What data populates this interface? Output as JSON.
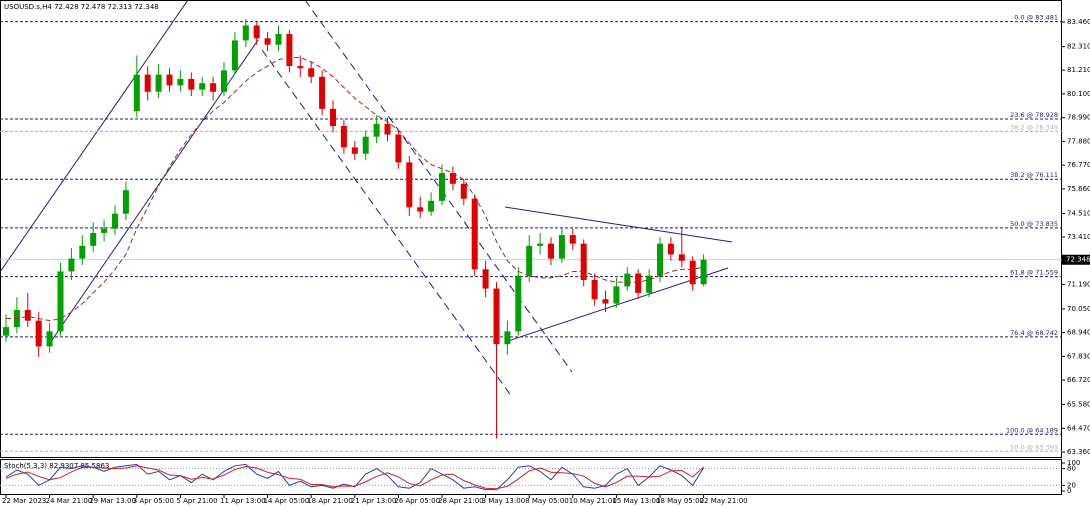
{
  "chart_data": [
    {
      "type": "candlestick",
      "title": "USOUSD.s,H4  72.428 72.478 72.313 72.348",
      "categories": [
        "22 Mar 2023",
        null,
        null,
        null,
        "24 Mar 21:00",
        null,
        null,
        null,
        "29 Mar 13:00",
        null,
        null,
        null,
        "3 Apr 05:00",
        null,
        null,
        null,
        "5 Apr 21:00",
        null,
        null,
        null,
        "11 Apr 13:00",
        null,
        null,
        null,
        "14 Apr 05:00",
        null,
        null,
        null,
        "18 Apr 21:00",
        null,
        null,
        null,
        "21 Apr 13:00",
        null,
        null,
        null,
        "26 Apr 05:00",
        null,
        null,
        null,
        "28 Apr 21:00",
        null,
        null,
        null,
        "3 May 13:00",
        null,
        null,
        null,
        "8 May 05:00",
        null,
        null,
        null,
        "10 May 21:00",
        null,
        null,
        null,
        "15 May 13:00",
        null,
        null,
        null,
        "18 May 05:00",
        null,
        null,
        null,
        "22 May 21:00"
      ],
      "open": [
        68.8,
        69.2,
        70.0,
        69.5,
        68.3,
        69.0,
        71.8,
        72.4,
        73.0,
        73.6,
        73.8,
        74.5,
        79.3,
        81.0,
        80.2,
        81.0,
        80.5,
        80.8,
        80.3,
        80.6,
        80.2,
        81.2,
        82.6,
        83.3,
        82.7,
        82.4,
        82.9,
        81.4,
        81.3,
        80.9,
        79.4,
        78.6,
        77.6,
        77.3,
        78.1,
        78.7,
        78.2,
        76.9,
        74.8,
        74.6,
        75.1,
        76.4,
        75.9,
        75.2,
        71.9,
        71.0,
        68.4,
        69.0,
        71.6,
        73.0,
        73.1,
        72.4,
        73.5,
        73.1,
        71.4,
        70.5,
        70.3,
        71.1,
        71.7,
        70.8,
        71.6,
        73.1,
        72.6,
        72.3,
        71.2
      ],
      "high": [
        69.8,
        70.6,
        70.8,
        69.9,
        69.4,
        72.2,
        72.9,
        73.5,
        74.1,
        74.2,
        74.9,
        76.0,
        81.9,
        81.4,
        81.5,
        81.3,
        81.2,
        81.1,
        80.9,
        80.9,
        81.6,
        83.0,
        83.6,
        83.5,
        83.0,
        83.3,
        83.1,
        81.9,
        81.6,
        81.2,
        79.8,
        78.9,
        77.9,
        78.4,
        79.1,
        79.0,
        78.4,
        77.2,
        75.3,
        75.5,
        76.8,
        76.7,
        76.1,
        75.4,
        72.3,
        71.3,
        69.5,
        72.0,
        73.5,
        73.6,
        73.4,
        73.8,
        73.8,
        73.3,
        71.7,
        70.9,
        71.5,
        72.0,
        71.9,
        71.9,
        73.4,
        73.4,
        73.9,
        72.5,
        72.6
      ],
      "low": [
        68.5,
        68.9,
        69.2,
        67.8,
        68.0,
        68.8,
        71.4,
        72.1,
        72.7,
        73.2,
        73.5,
        74.2,
        79.0,
        79.8,
        79.9,
        80.2,
        80.2,
        80.0,
        80.0,
        79.8,
        80.0,
        81.0,
        82.3,
        82.4,
        82.1,
        82.1,
        81.1,
        80.9,
        80.6,
        79.1,
        78.3,
        77.3,
        77.0,
        77.0,
        77.8,
        77.9,
        76.6,
        74.4,
        74.3,
        74.4,
        74.9,
        75.6,
        74.9,
        71.6,
        70.6,
        64.0,
        67.9,
        68.8,
        71.3,
        72.6,
        72.1,
        72.2,
        72.8,
        71.1,
        70.2,
        69.9,
        70.1,
        70.9,
        70.5,
        70.6,
        71.3,
        72.3,
        72.0,
        70.9,
        71.1
      ],
      "close": [
        69.2,
        70.0,
        69.5,
        68.3,
        69.0,
        71.8,
        72.4,
        73.0,
        73.6,
        73.8,
        74.5,
        75.6,
        81.0,
        80.2,
        81.0,
        80.5,
        80.8,
        80.3,
        80.6,
        80.2,
        81.2,
        82.6,
        83.3,
        82.7,
        82.4,
        82.9,
        81.4,
        81.3,
        80.9,
        79.4,
        78.6,
        77.6,
        77.3,
        78.1,
        78.7,
        78.2,
        76.9,
        74.8,
        74.6,
        75.1,
        76.4,
        75.9,
        75.2,
        71.9,
        71.0,
        68.4,
        69.0,
        71.6,
        73.0,
        73.1,
        72.4,
        73.5,
        73.1,
        71.4,
        70.5,
        70.3,
        71.1,
        71.7,
        70.8,
        71.6,
        73.1,
        72.6,
        72.3,
        71.2,
        72.348
      ],
      "up_color": "#00a000",
      "down_color": "#e00000",
      "ma": {
        "color": "#9b2a2a",
        "values": [
          69.6,
          69.6,
          69.7,
          69.6,
          69.5,
          69.6,
          69.9,
          70.3,
          70.8,
          71.3,
          71.9,
          72.6,
          73.8,
          74.8,
          75.8,
          76.7,
          77.5,
          78.2,
          78.8,
          79.3,
          79.7,
          80.2,
          80.7,
          81.1,
          81.4,
          81.7,
          81.8,
          81.8,
          81.6,
          81.3,
          80.9,
          80.4,
          79.9,
          79.5,
          79.1,
          78.8,
          78.4,
          77.8,
          77.2,
          76.8,
          76.6,
          76.4,
          76.1,
          75.3,
          74.4,
          73.2,
          72.3,
          71.8,
          71.6,
          71.5,
          71.5,
          71.6,
          71.8,
          71.8,
          71.6,
          71.4,
          71.3,
          71.3,
          71.3,
          71.4,
          71.6,
          71.8,
          71.9,
          71.9,
          72.0
        ]
      },
      "ylim": [
        63.08,
        84.49
      ],
      "yticks": [
        {
          "value": 83.46,
          "label": "83.460"
        },
        {
          "value": 82.31,
          "label": "82.310"
        },
        {
          "value": 81.21,
          "label": "81.210"
        },
        {
          "value": 80.1,
          "label": "80.100"
        },
        {
          "value": 78.99,
          "label": "78.990"
        },
        {
          "value": 77.88,
          "label": "77.880"
        },
        {
          "value": 76.77,
          "label": "76.770"
        },
        {
          "value": 75.66,
          "label": "75.660"
        },
        {
          "value": 74.51,
          "label": "74.510"
        },
        {
          "value": 73.41,
          "label": "73.410"
        },
        {
          "value": 71.19,
          "label": "71.190"
        },
        {
          "value": 70.05,
          "label": "70.050"
        },
        {
          "value": 68.94,
          "label": "68.940"
        },
        {
          "value": 67.83,
          "label": "67.830"
        },
        {
          "value": 66.72,
          "label": "66.720"
        },
        {
          "value": 65.58,
          "label": "65.580"
        },
        {
          "value": 64.47,
          "label": "64.470"
        },
        {
          "value": 63.36,
          "label": "63.360"
        }
      ],
      "grid": false,
      "last_price": {
        "value": 72.348,
        "label": "72.348"
      },
      "levels": [
        {
          "value": 83.481,
          "label": "0.0 @ 83.481",
          "color": "#1c1c6e"
        },
        {
          "value": 78.928,
          "label": "23.6 @ 78.928",
          "color": "#1c1c6e"
        },
        {
          "value": 78.349,
          "label": "38.2 @ 78.349",
          "color": "#b0b0b0"
        },
        {
          "value": 76.111,
          "label": "38.2 @ 76.111",
          "color": "#1c1c6e"
        },
        {
          "value": 73.835,
          "label": "50.0 @ 73.835",
          "color": "#1c1c6e"
        },
        {
          "value": 71.559,
          "label": "61.8 @ 71.559",
          "color": "#1c1c6e"
        },
        {
          "value": 68.742,
          "label": "76.4 @ 68.742",
          "color": "#1c1c6e"
        },
        {
          "value": 64.189,
          "label": "100.0 @ 64.189",
          "color": "#1c1c6e"
        },
        {
          "value": 63.393,
          "label": "50.0 @ 63.393",
          "color": "#b0b0b0"
        }
      ]
    },
    {
      "type": "line",
      "title": "Stoch(5,3,3) 82.9307 85.5863",
      "series": [
        {
          "color": "#1f3fbf",
          "values": [
            50,
            75,
            60,
            20,
            40,
            85,
            80,
            90,
            85,
            70,
            85,
            90,
            95,
            60,
            70,
            40,
            55,
            30,
            60,
            40,
            70,
            90,
            95,
            60,
            45,
            70,
            20,
            35,
            15,
            20,
            10,
            25,
            15,
            60,
            80,
            55,
            15,
            10,
            30,
            80,
            60,
            40,
            10,
            15,
            5,
            5,
            40,
            85,
            90,
            70,
            40,
            85,
            60,
            15,
            10,
            20,
            60,
            80,
            20,
            50,
            90,
            75,
            55,
            20,
            82.9307
          ]
        },
        {
          "color": "#d02020",
          "values": [
            45,
            60,
            68,
            52,
            40,
            48,
            68,
            85,
            85,
            82,
            80,
            82,
            90,
            82,
            75,
            57,
            55,
            42,
            48,
            43,
            57,
            77,
            88,
            82,
            67,
            58,
            45,
            42,
            23,
            23,
            15,
            18,
            17,
            33,
            52,
            65,
            50,
            27,
            18,
            40,
            57,
            60,
            37,
            22,
            10,
            8,
            17,
            43,
            72,
            82,
            67,
            65,
            62,
            53,
            28,
            15,
            30,
            53,
            53,
            50,
            53,
            72,
            73,
            50,
            85.5863
          ]
        }
      ],
      "ylim": [
        0,
        100
      ],
      "yticks": [
        100,
        80,
        20,
        0
      ]
    }
  ]
}
